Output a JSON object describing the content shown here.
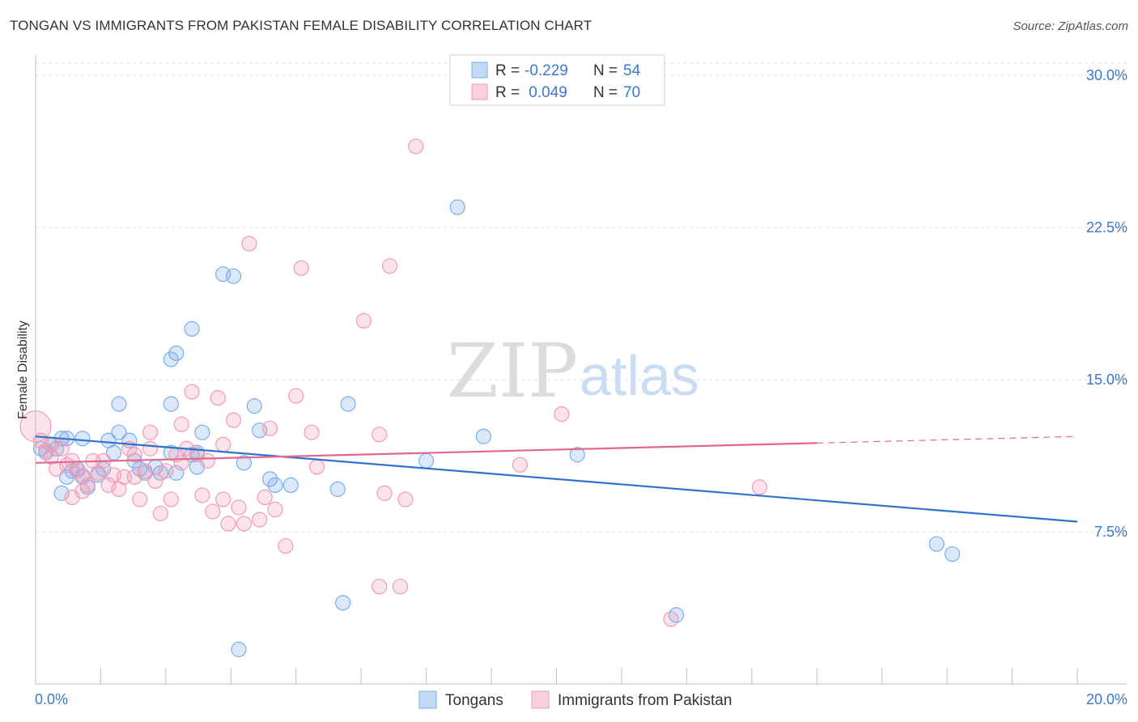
{
  "title": "TONGAN VS IMMIGRANTS FROM PAKISTAN FEMALE DISABILITY CORRELATION CHART",
  "source": "Source: ZipAtlas.com",
  "watermark": {
    "zip": "ZIP",
    "atlas": "atlas"
  },
  "chart_data": {
    "type": "scatter",
    "title": "TONGAN VS IMMIGRANTS FROM PAKISTAN FEMALE DISABILITY CORRELATION CHART",
    "xlabel": "",
    "ylabel": "Female Disability",
    "xlim": [
      0,
      20
    ],
    "ylim": [
      0,
      31
    ],
    "x_tick_labels": [
      {
        "value": 0,
        "label": "0.0%"
      },
      {
        "value": 20,
        "label": "20.0%"
      }
    ],
    "y_ticks": [
      {
        "value": 7.5,
        "label": "7.5%"
      },
      {
        "value": 15.0,
        "label": "15.0%"
      },
      {
        "value": 22.5,
        "label": "22.5%"
      },
      {
        "value": 30.0,
        "label": "30.0%"
      }
    ],
    "legend": [
      {
        "name": "Tongans",
        "r_label": "R =",
        "r_value": "-0.229",
        "n_label": "N =",
        "n_value": "54"
      },
      {
        "name": "Immigrants from Pakistan",
        "r_label": "R =",
        "r_value": " 0.049",
        "n_label": "N =",
        "n_value": "70"
      }
    ],
    "series": [
      {
        "name": "Tongans",
        "color": "#7aaee8",
        "fill": "rgba(122,174,232,0.28)",
        "line_color": "#2f72cc",
        "trend": {
          "x0": 0.0,
          "y0": 12.2,
          "x1": 20.0,
          "y1": 8.0,
          "dash_from": null
        },
        "points": [
          [
            0.1,
            11.6
          ],
          [
            0.2,
            11.4
          ],
          [
            0.3,
            11.8
          ],
          [
            0.4,
            11.6
          ],
          [
            0.5,
            12.1
          ],
          [
            0.6,
            12.1
          ],
          [
            0.7,
            10.5
          ],
          [
            0.8,
            10.6
          ],
          [
            0.9,
            10.2
          ],
          [
            0.5,
            9.4
          ],
          [
            0.6,
            10.2
          ],
          [
            1.0,
            9.7
          ],
          [
            1.2,
            10.3
          ],
          [
            1.4,
            12.0
          ],
          [
            1.5,
            11.4
          ],
          [
            1.6,
            12.4
          ],
          [
            1.8,
            12.0
          ],
          [
            1.9,
            11.0
          ],
          [
            2.0,
            10.6
          ],
          [
            2.1,
            10.4
          ],
          [
            2.3,
            10.7
          ],
          [
            2.4,
            10.4
          ],
          [
            2.7,
            10.4
          ],
          [
            2.6,
            11.4
          ],
          [
            3.0,
            11.3
          ],
          [
            3.1,
            10.7
          ],
          [
            3.2,
            12.4
          ],
          [
            3.6,
            20.2
          ],
          [
            3.8,
            20.1
          ],
          [
            3.0,
            17.5
          ],
          [
            2.6,
            16.0
          ],
          [
            2.7,
            16.3
          ],
          [
            2.6,
            13.8
          ],
          [
            1.6,
            13.8
          ],
          [
            4.2,
            13.7
          ],
          [
            4.3,
            12.5
          ],
          [
            4.0,
            10.9
          ],
          [
            4.5,
            10.1
          ],
          [
            4.6,
            9.8
          ],
          [
            4.9,
            9.8
          ],
          [
            5.8,
            9.6
          ],
          [
            6.0,
            13.8
          ],
          [
            7.5,
            11.0
          ],
          [
            8.1,
            23.5
          ],
          [
            8.6,
            12.2
          ],
          [
            10.4,
            11.3
          ],
          [
            5.9,
            4.0
          ],
          [
            12.3,
            3.4
          ],
          [
            3.9,
            1.7
          ],
          [
            17.3,
            6.9
          ],
          [
            17.6,
            6.4
          ],
          [
            1.3,
            10.6
          ],
          [
            0.9,
            12.1
          ],
          [
            3.1,
            11.4
          ]
        ]
      },
      {
        "name": "Immigrants from Pakistan",
        "color": "#f19ab5",
        "fill": "rgba(241,154,181,0.28)",
        "line_color": "#e2678f",
        "trend": {
          "x0": 0.0,
          "y0": 10.9,
          "x1": 20.0,
          "y1": 12.2,
          "dash_from": 15.0
        },
        "points": [
          [
            0.0,
            12.7
          ],
          [
            0.1,
            12.0
          ],
          [
            0.2,
            11.5
          ],
          [
            0.3,
            11.2
          ],
          [
            0.4,
            10.6
          ],
          [
            0.6,
            10.8
          ],
          [
            0.7,
            11.0
          ],
          [
            0.8,
            10.5
          ],
          [
            0.9,
            10.3
          ],
          [
            1.0,
            9.8
          ],
          [
            1.1,
            11.0
          ],
          [
            1.2,
            10.4
          ],
          [
            0.7,
            9.2
          ],
          [
            0.9,
            9.5
          ],
          [
            1.4,
            9.8
          ],
          [
            1.5,
            10.3
          ],
          [
            1.6,
            9.6
          ],
          [
            1.7,
            10.2
          ],
          [
            1.8,
            11.6
          ],
          [
            1.9,
            11.3
          ],
          [
            2.0,
            9.1
          ],
          [
            2.1,
            10.5
          ],
          [
            2.2,
            12.4
          ],
          [
            2.3,
            10.0
          ],
          [
            2.4,
            8.4
          ],
          [
            2.5,
            10.5
          ],
          [
            2.6,
            9.1
          ],
          [
            2.7,
            11.3
          ],
          [
            2.8,
            12.8
          ],
          [
            2.9,
            11.6
          ],
          [
            3.0,
            14.4
          ],
          [
            3.1,
            11.3
          ],
          [
            3.2,
            9.3
          ],
          [
            3.4,
            8.5
          ],
          [
            3.5,
            14.1
          ],
          [
            3.6,
            9.1
          ],
          [
            3.7,
            7.9
          ],
          [
            3.8,
            13.0
          ],
          [
            3.9,
            8.7
          ],
          [
            4.0,
            7.9
          ],
          [
            4.1,
            21.7
          ],
          [
            4.3,
            8.1
          ],
          [
            4.5,
            12.6
          ],
          [
            4.6,
            8.6
          ],
          [
            4.8,
            6.8
          ],
          [
            5.0,
            14.2
          ],
          [
            5.1,
            20.5
          ],
          [
            5.3,
            12.4
          ],
          [
            5.4,
            10.7
          ],
          [
            6.3,
            17.9
          ],
          [
            6.6,
            12.3
          ],
          [
            6.8,
            20.6
          ],
          [
            6.7,
            9.4
          ],
          [
            7.1,
            9.1
          ],
          [
            7.3,
            26.5
          ],
          [
            6.6,
            4.8
          ],
          [
            7.0,
            4.8
          ],
          [
            9.3,
            10.8
          ],
          [
            10.1,
            13.3
          ],
          [
            12.2,
            3.2
          ],
          [
            13.9,
            9.7
          ],
          [
            2.2,
            11.6
          ],
          [
            1.3,
            11.0
          ],
          [
            0.5,
            11.6
          ],
          [
            3.3,
            11.0
          ],
          [
            1.9,
            10.2
          ],
          [
            2.8,
            10.9
          ],
          [
            0.3,
            11.8
          ],
          [
            4.4,
            9.2
          ],
          [
            3.6,
            11.8
          ]
        ]
      }
    ]
  }
}
